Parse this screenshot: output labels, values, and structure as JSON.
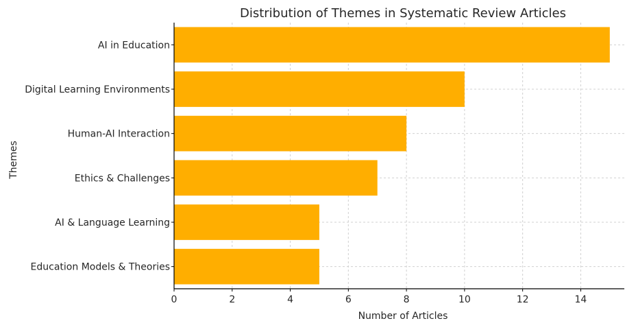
{
  "chart_data": {
    "type": "bar",
    "orientation": "horizontal",
    "title": "Distribution of Themes in Systematic Review Articles",
    "xlabel": "Number of Articles",
    "ylabel": "Themes",
    "categories": [
      "AI in Education",
      "Digital Learning Environments",
      "Human-AI Interaction",
      "Ethics & Challenges",
      "AI & Language Learning",
      "Education Models & Theories"
    ],
    "values": [
      15,
      10,
      8,
      7,
      5,
      5
    ],
    "xlim": [
      0,
      15.5
    ],
    "xticks": [
      0,
      2,
      4,
      6,
      8,
      10,
      12,
      14
    ],
    "grid": true,
    "bar_color": "#FFAE00"
  }
}
